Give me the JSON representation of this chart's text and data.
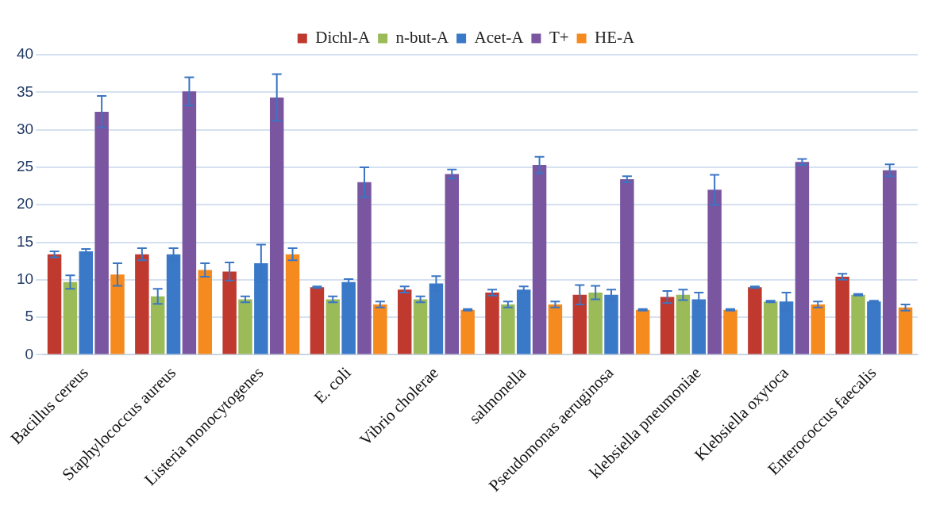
{
  "chart_data": {
    "type": "bar",
    "categories": [
      "Bacillus cereus",
      "Staphylococcus aureus",
      "Listeria monocytogenes",
      "E. coli",
      "Vibrio cholerae",
      "salmonella",
      "Pseudomonas aeruginosa",
      "klebsiella pneumoniae",
      "Klebsiella oxytoca",
      "Enterococcus faecalis"
    ],
    "series": [
      {
        "name": "Dichl-A",
        "color": "#c0392f",
        "values": [
          13.4,
          13.4,
          11.1,
          9.0,
          8.7,
          8.3,
          8.0,
          7.7,
          9.0,
          10.4
        ],
        "errors": [
          0.4,
          0.8,
          1.2,
          0.1,
          0.4,
          0.4,
          1.3,
          0.8,
          0.1,
          0.4
        ]
      },
      {
        "name": "n-but-A",
        "color": "#9bbb59",
        "values": [
          9.7,
          7.8,
          7.4,
          7.4,
          7.4,
          6.7,
          8.3,
          8.0,
          7.1,
          8.0
        ],
        "errors": [
          0.9,
          1.0,
          0.4,
          0.4,
          0.4,
          0.4,
          0.9,
          0.7,
          0.1,
          0.1
        ]
      },
      {
        "name": "Acet-A",
        "color": "#3a78c8",
        "values": [
          13.8,
          13.4,
          12.2,
          9.7,
          9.5,
          8.7,
          8.0,
          7.4,
          7.1,
          7.1
        ],
        "errors": [
          0.3,
          0.8,
          2.5,
          0.4,
          1.0,
          0.4,
          0.7,
          0.9,
          1.2,
          0.1
        ]
      },
      {
        "name": "T+",
        "color": "#7a55a0",
        "values": [
          32.4,
          35.1,
          34.3,
          23.0,
          24.1,
          25.3,
          23.4,
          22.0,
          25.7,
          24.6
        ],
        "errors": [
          2.1,
          1.9,
          3.1,
          2.0,
          0.6,
          1.1,
          0.4,
          2.0,
          0.4,
          0.8
        ]
      },
      {
        "name": "HE-A",
        "color": "#f58a1f",
        "values": [
          10.7,
          11.3,
          13.4,
          6.7,
          6.0,
          6.7,
          6.0,
          6.0,
          6.7,
          6.3
        ],
        "errors": [
          1.5,
          0.9,
          0.8,
          0.4,
          0.1,
          0.4,
          0.1,
          0.1,
          0.4,
          0.4
        ]
      }
    ],
    "ylim": [
      0,
      40
    ],
    "yticks": [
      0,
      5,
      10,
      15,
      20,
      25,
      30,
      35,
      40
    ],
    "grid": "y",
    "legend": "top"
  }
}
